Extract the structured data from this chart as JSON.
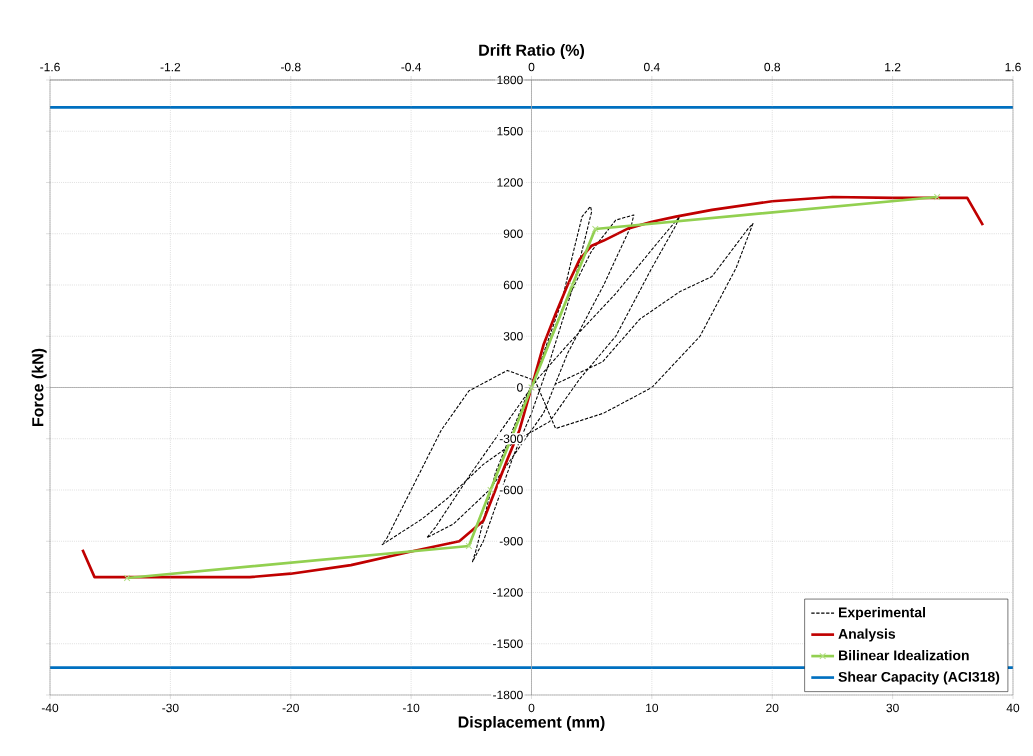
{
  "chart_data": {
    "type": "line",
    "xlabel": "Displacement (mm)",
    "ylabel": "Force (kN)",
    "x2label": "Drift Ratio (%)",
    "xlim": [
      -40,
      40
    ],
    "xticks": [
      -40,
      -30,
      -20,
      -10,
      0,
      10,
      20,
      30,
      40
    ],
    "ylim": [
      -1800,
      1800
    ],
    "yticks": [
      -1800,
      -1500,
      -1200,
      -900,
      -600,
      -300,
      0,
      300,
      600,
      900,
      1200,
      1500,
      1800
    ],
    "x2lim": [
      -1.6,
      1.6
    ],
    "x2ticks": [
      -1.6,
      -1.2,
      -0.8,
      -0.4,
      0,
      0.4,
      0.8,
      1.2,
      1.6
    ],
    "grid": true,
    "legend": "bottom right",
    "series": [
      {
        "name": "Experimental",
        "color": "#000000",
        "line_style": "dashed",
        "marker": "none",
        "x": [
          0,
          1,
          2.5,
          3.5,
          4.2,
          4.9,
          5,
          3.5,
          1.5,
          0,
          -1.5,
          -3,
          -4,
          -4.9,
          -4.6,
          -3,
          -1,
          0.5,
          2.5,
          5,
          7,
          8.5,
          8.3,
          6,
          3,
          1,
          -1,
          -3.5,
          -6.5,
          -8.7,
          -8,
          -5,
          -2,
          0.5,
          3,
          7,
          10.5,
          12.3,
          12,
          10,
          7,
          4,
          1.5,
          -1,
          -4,
          -7,
          -9.1,
          -12.4,
          -12,
          -10,
          -7.5,
          -5.2,
          -2,
          0.3,
          2,
          6,
          10,
          14,
          17,
          18.4,
          18,
          15,
          12.3,
          9,
          5.9,
          2
        ],
        "values": [
          0,
          200,
          500,
          800,
          1000,
          1060,
          1030,
          600,
          150,
          -150,
          -400,
          -700,
          -900,
          -1020,
          -950,
          -500,
          -150,
          100,
          450,
          800,
          980,
          1010,
          950,
          600,
          200,
          -150,
          -350,
          -600,
          -800,
          -880,
          -820,
          -500,
          -200,
          50,
          250,
          550,
          850,
          1000,
          950,
          700,
          300,
          50,
          -200,
          -300,
          -450,
          -650,
          -770,
          -920,
          -880,
          -600,
          -250,
          -20,
          100,
          40,
          -240,
          -150,
          0,
          300,
          700,
          960,
          930,
          650,
          560,
          400,
          150,
          20
        ]
      },
      {
        "name": "Analysis",
        "color": "#c00000",
        "line_style": "solid",
        "marker": "none",
        "x": [
          -37.3,
          -36.3,
          -23.4,
          -20,
          -15,
          -10,
          -6,
          -4,
          -3,
          -2,
          -1,
          0,
          1,
          2,
          3,
          4,
          5,
          6,
          8,
          10,
          12,
          15,
          20,
          25,
          30,
          36.2,
          37.5
        ],
        "values": [
          -950,
          -1110,
          -1110,
          -1090,
          -1040,
          -960,
          -900,
          -780,
          -600,
          -420,
          -250,
          0,
          250,
          430,
          600,
          750,
          830,
          860,
          930,
          970,
          1000,
          1040,
          1090,
          1115,
          1110,
          1110,
          950
        ]
      },
      {
        "name": "Bilinear Idealization",
        "color": "#92d050",
        "line_style": "solid",
        "marker": "cross",
        "x": [
          -33.6,
          -5.2,
          -3.4,
          0,
          3.4,
          5.3,
          33.7
        ],
        "values": [
          -1115,
          -928,
          -600,
          0,
          600,
          928,
          1115
        ]
      },
      {
        "name": "Shear Capacity (ACI318)",
        "color": "#0070c0",
        "line_style": "solid",
        "marker": "none",
        "x": [
          -40,
          40
        ],
        "values": [
          1640,
          1640
        ]
      },
      {
        "color": "#0070c0",
        "line_style": "solid",
        "marker": "none",
        "x": [
          -40,
          40
        ],
        "values": [
          -1640,
          -1640
        ]
      }
    ]
  }
}
